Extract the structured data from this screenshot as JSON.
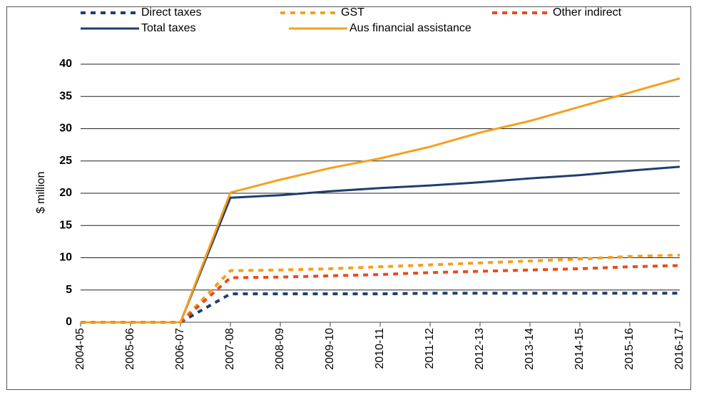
{
  "chart_data": {
    "type": "line",
    "y_label": "$ million",
    "categories": [
      "2004-05",
      "2005-06",
      "2006-07",
      "2007-08",
      "2008-09",
      "2009-10",
      "2010-11",
      "2011-12",
      "2012-13",
      "2013-14",
      "2014-15",
      "2015-16",
      "2016-17"
    ],
    "series": [
      {
        "name": "Direct taxes",
        "color": "#1f3f6e",
        "dashed": true,
        "values": [
          0,
          0,
          0,
          4.4,
          4.4,
          4.4,
          4.4,
          4.5,
          4.5,
          4.5,
          4.5,
          4.5,
          4.5
        ]
      },
      {
        "name": "GST",
        "color": "#f5a01e",
        "dashed": true,
        "values": [
          0,
          0,
          0,
          8.0,
          8.1,
          8.3,
          8.6,
          8.9,
          9.2,
          9.5,
          9.8,
          10.2,
          10.4
        ]
      },
      {
        "name": "Other indirect",
        "color": "#ea4a1c",
        "dashed": true,
        "values": [
          0,
          0,
          0,
          6.9,
          7.0,
          7.2,
          7.4,
          7.7,
          7.9,
          8.1,
          8.3,
          8.6,
          8.8
        ]
      },
      {
        "name": "Total taxes",
        "color": "#1f3f6e",
        "dashed": false,
        "values": [
          0,
          0,
          0,
          19.3,
          19.7,
          20.3,
          20.8,
          21.2,
          21.7,
          22.3,
          22.8,
          23.5,
          24.1
        ]
      },
      {
        "name": "Aus financial assistance",
        "color": "#f5a01e",
        "dashed": false,
        "values": [
          0,
          0,
          0,
          20.1,
          22.1,
          23.9,
          25.4,
          27.2,
          29.4,
          31.2,
          33.4,
          35.6,
          37.8
        ]
      }
    ],
    "ylim": [
      0,
      40
    ],
    "yticks": [
      0,
      5,
      10,
      15,
      20,
      25,
      30,
      35,
      40
    ],
    "grid": true
  }
}
